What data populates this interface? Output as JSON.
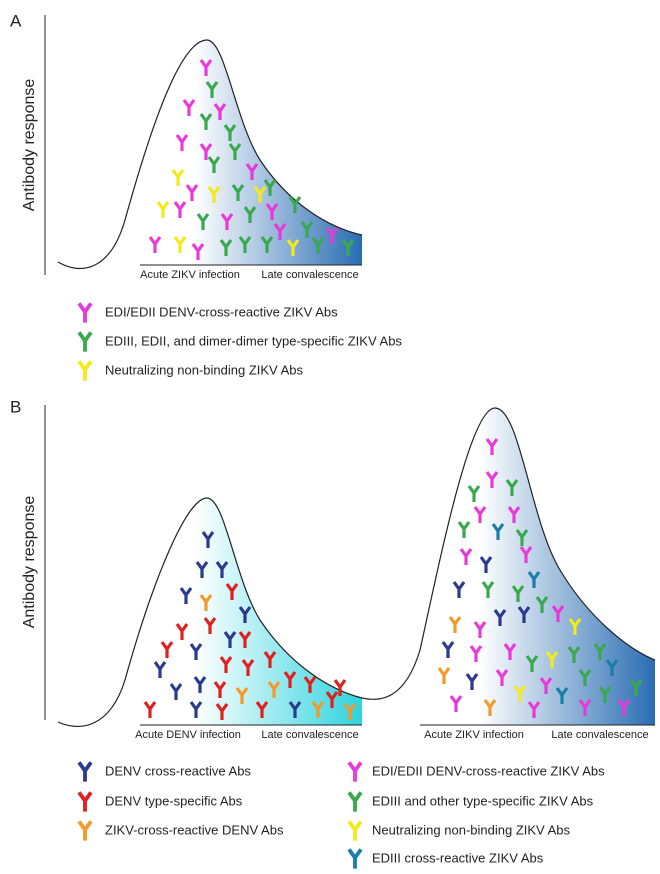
{
  "panel_a": {
    "label": "A",
    "y_axis_label": "Antibody response",
    "x_labels": [
      "Acute ZIKV infection",
      "Late convalescence"
    ],
    "legend": [
      "EDI/EDII DENV-cross-reactive ZIKV Abs",
      "EDIII, EDII, and dimer-dimer type-specific ZIKV Abs",
      "Neutralizing non-binding ZIKV Abs"
    ]
  },
  "panel_b": {
    "label": "B",
    "y_axis_label": "Antibody response",
    "curves": [
      {
        "x_labels": [
          "Acute DENV infection",
          "Late convalescence"
        ]
      },
      {
        "x_labels": [
          "Acute ZIKV infection",
          "Late convalescence"
        ]
      }
    ],
    "legend_left": [
      "DENV cross-reactive Abs",
      "DENV type-specific Abs",
      "ZIKV-cross-reactive DENV Abs"
    ],
    "legend_right": [
      "EDI/EDII DENV-cross-reactive ZIKV Abs",
      "EDIII and other type-specific ZIKV Abs",
      "Neutralizing non-binding ZIKV Abs",
      "EDIII cross-reactive ZIKV Abs"
    ]
  }
}
